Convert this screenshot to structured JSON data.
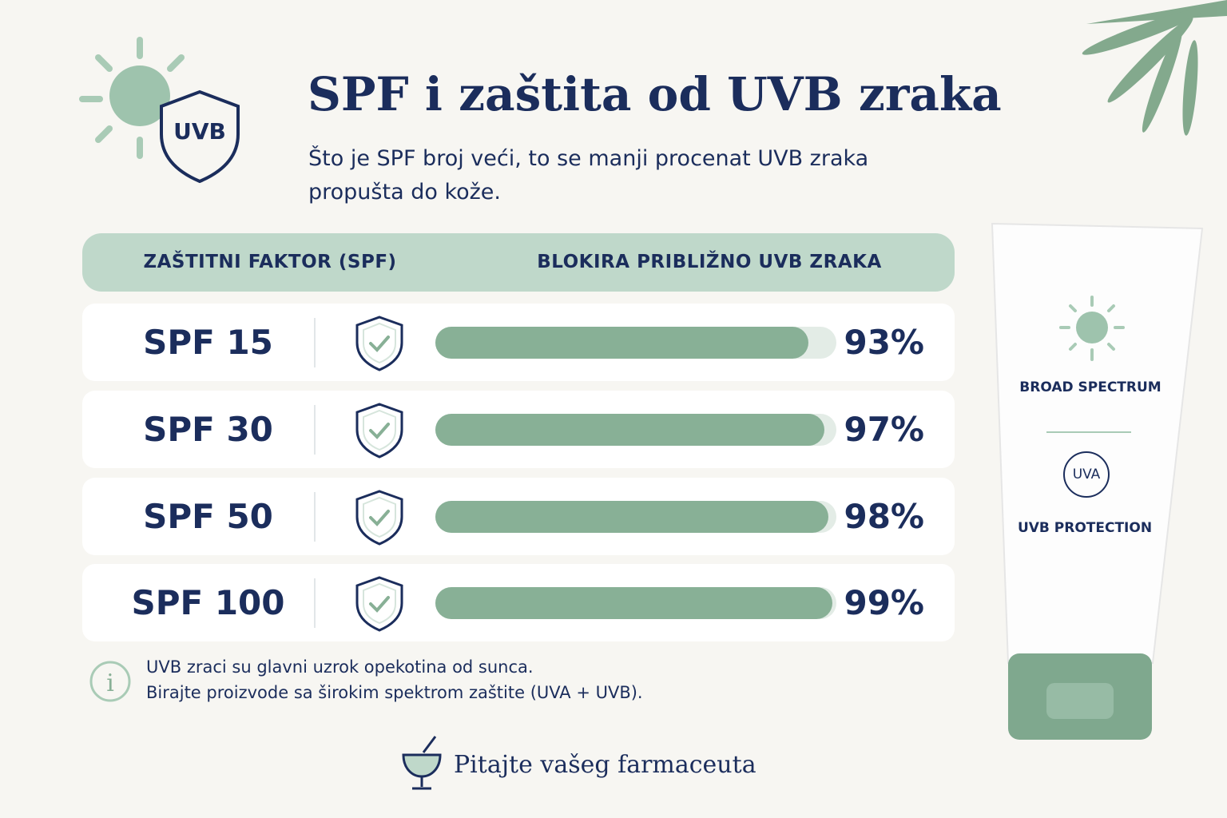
{
  "header": {
    "badge": "UVB",
    "title": "SPF i zaštita od UVB zraka",
    "subtitle": "Što je SPF broj veći, to se manji procenat UVB zraka propušta do kože."
  },
  "table": {
    "columns": [
      "ZAŠTITNI FAKTOR (SPF)",
      "BLOKIRA PRIBLIŽNO UVB ZRAKA"
    ],
    "xlim": [
      0,
      100
    ],
    "rows": [
      {
        "label": "SPF 15",
        "value": 93,
        "value_label": "93%"
      },
      {
        "label": "SPF 30",
        "value": 97,
        "value_label": "97%"
      },
      {
        "label": "SPF 50",
        "value": 98,
        "value_label": "98%"
      },
      {
        "label": "SPF 100",
        "value": 99,
        "value_label": "99%"
      }
    ]
  },
  "note": {
    "line1": "UVB zraci su glavni uzrok opekotina od sunca.",
    "line2": "Birajte proizvode sa širokim spektrom zaštite (UVA + UVB)."
  },
  "tube": {
    "line1": "BROAD SPECTRUM",
    "badge": "UVA",
    "line2": "UVB PROTECTION"
  },
  "footer": {
    "text": "Pitajte vašeg farmaceuta"
  }
}
